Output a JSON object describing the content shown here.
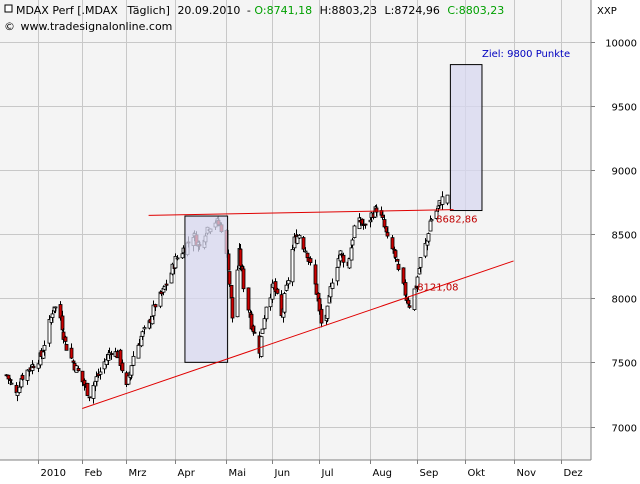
{
  "header": {
    "symbol": "MDAX Perf [.MDAX",
    "period": "Täglich]",
    "date": "20.09.2010",
    "sep": "-",
    "open": "O:8741,18",
    "high": "H:8803,23",
    "low": "L:8724,96",
    "close": "C:8803,23",
    "url": "www.tradesignalonline.com",
    "price_axis_label": "XXP",
    "colors": {
      "up_value": "#00a000",
      "text": "#000000"
    }
  },
  "annotations": {
    "target": "Ziel: 9800 Punkte",
    "resistance": "8682,86",
    "support": "8121,08"
  },
  "colors": {
    "plot_bg": "#f4f4f4",
    "grid": "#c8c8c8",
    "candle": "#000000",
    "down_fill": "#cc0000",
    "up_fill": "#ffffff",
    "trendline": "#e00000",
    "box_fill": "#d8d8f0",
    "box_stroke": "#000000",
    "target_text": "#0000c0",
    "level_text": "#c00000"
  },
  "chart_data": {
    "type": "candlestick",
    "title": "MDAX Perf [.MDAX Täglich]",
    "x_axis": {
      "type": "date",
      "range": [
        "2010-01-01",
        "2010-12-31"
      ],
      "ticks": [
        {
          "date": "2010-01-04",
          "label": "2010"
        },
        {
          "date": "2010-02-01",
          "label": "Feb"
        },
        {
          "date": "2010-03-01",
          "label": "Mrz"
        },
        {
          "date": "2010-04-01",
          "label": "Apr"
        },
        {
          "date": "2010-05-03",
          "label": "Mai"
        },
        {
          "date": "2010-06-01",
          "label": "Jun"
        },
        {
          "date": "2010-07-01",
          "label": "Jul"
        },
        {
          "date": "2010-08-02",
          "label": "Aug"
        },
        {
          "date": "2010-09-01",
          "label": "Sep"
        },
        {
          "date": "2010-10-01",
          "label": "Okt"
        },
        {
          "date": "2010-11-01",
          "label": "Nov"
        },
        {
          "date": "2010-12-01",
          "label": "Dez"
        }
      ]
    },
    "y_axis": {
      "position": "right",
      "range": [
        6750,
        10100
      ],
      "ticks": [
        7000,
        7500,
        8000,
        8500,
        9000,
        9500,
        10000
      ]
    },
    "grid": true,
    "close_path": [
      [
        "2009-12-15",
        7400
      ],
      [
        "2009-12-21",
        7250
      ],
      [
        "2009-12-24",
        7380
      ],
      [
        "2009-12-29",
        7450
      ],
      [
        "2010-01-06",
        7550
      ],
      [
        "2010-01-11",
        7800
      ],
      [
        "2010-01-14",
        7950
      ],
      [
        "2010-01-18",
        7850
      ],
      [
        "2010-01-21",
        7650
      ],
      [
        "2010-01-26",
        7500
      ],
      [
        "2010-02-01",
        7350
      ],
      [
        "2010-02-05",
        7250
      ],
      [
        "2010-02-09",
        7350
      ],
      [
        "2010-02-15",
        7500
      ],
      [
        "2010-02-19",
        7600
      ],
      [
        "2010-02-24",
        7550
      ],
      [
        "2010-03-01",
        7300
      ],
      [
        "2010-03-05",
        7550
      ],
      [
        "2010-03-10",
        7700
      ],
      [
        "2010-03-15",
        7800
      ],
      [
        "2010-03-19",
        7950
      ],
      [
        "2010-03-24",
        8050
      ],
      [
        "2010-03-29",
        8200
      ],
      [
        "2010-04-01",
        8300
      ],
      [
        "2010-04-07",
        8400
      ],
      [
        "2010-04-12",
        8500
      ],
      [
        "2010-04-16",
        8400
      ],
      [
        "2010-04-21",
        8550
      ],
      [
        "2010-04-26",
        8600
      ],
      [
        "2010-04-30",
        8550
      ],
      [
        "2010-05-04",
        8250
      ],
      [
        "2010-05-07",
        7850
      ],
      [
        "2010-05-11",
        8350
      ],
      [
        "2010-05-14",
        8100
      ],
      [
        "2010-05-19",
        7800
      ],
      [
        "2010-05-24",
        7600
      ],
      [
        "2010-05-28",
        7950
      ],
      [
        "2010-06-02",
        8100
      ],
      [
        "2010-06-07",
        7850
      ],
      [
        "2010-06-11",
        8150
      ],
      [
        "2010-06-15",
        8450
      ],
      [
        "2010-06-18",
        8500
      ],
      [
        "2010-06-23",
        8350
      ],
      [
        "2010-06-29",
        8050
      ],
      [
        "2010-07-02",
        7800
      ],
      [
        "2010-07-06",
        7900
      ],
      [
        "2010-07-09",
        8150
      ],
      [
        "2010-07-14",
        8350
      ],
      [
        "2010-07-19",
        8250
      ],
      [
        "2010-07-23",
        8550
      ],
      [
        "2010-07-27",
        8600
      ],
      [
        "2010-07-30",
        8550
      ],
      [
        "2010-08-03",
        8650
      ],
      [
        "2010-08-06",
        8700
      ],
      [
        "2010-08-10",
        8600
      ],
      [
        "2010-08-13",
        8450
      ],
      [
        "2010-08-17",
        8350
      ],
      [
        "2010-08-20",
        8200
      ],
      [
        "2010-08-25",
        8000
      ],
      [
        "2010-08-27",
        7950
      ],
      [
        "2010-08-31",
        8100
      ],
      [
        "2010-09-03",
        8300
      ],
      [
        "2010-09-07",
        8450
      ],
      [
        "2010-09-09",
        8600
      ],
      [
        "2010-09-13",
        8680
      ],
      [
        "2010-09-16",
        8760
      ],
      [
        "2010-09-20",
        8803.23
      ]
    ],
    "last_bar": {
      "date": "2010-09-20",
      "open": 8741.18,
      "high": 8803.23,
      "low": 8724.96,
      "close": 8803.23
    },
    "lines": [
      {
        "role": "resistance",
        "from": [
          "2010-03-15",
          8645
        ],
        "to": [
          "2010-09-24",
          8690
        ]
      },
      {
        "role": "support",
        "from": [
          "2010-02-01",
          7140
        ],
        "to": [
          "2010-11-01",
          8290
        ]
      }
    ],
    "boxes": [
      {
        "from": [
          "2010-04-07",
          7500
        ],
        "to": [
          "2010-05-04",
          8640
        ]
      },
      {
        "from": [
          "2010-09-22",
          8682.86
        ],
        "to": [
          "2010-10-12",
          9820
        ]
      }
    ],
    "labels": [
      {
        "text": "Ziel: 9800 Punkte",
        "at": [
          "2010-10-12",
          9880
        ]
      },
      {
        "text": "8682,86",
        "at": [
          "2010-09-13",
          8590
        ]
      },
      {
        "text": "8121,08",
        "at": [
          "2010-09-01",
          8060
        ]
      }
    ]
  }
}
